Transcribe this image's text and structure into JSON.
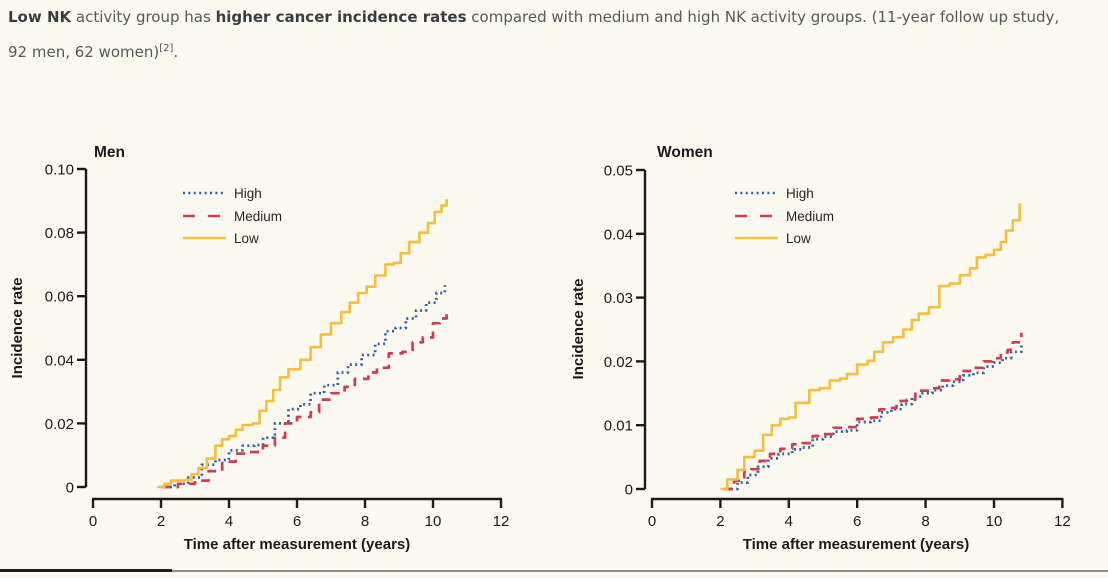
{
  "page": {
    "background": "#FCFAF0"
  },
  "header": {
    "text_color": "#53585A",
    "bold_color": "#383D3F",
    "segments": [
      {
        "t": "Low NK",
        "b": 1
      },
      {
        "t": " activity group has ",
        "b": 0
      },
      {
        "t": "higher cancer incidence rates",
        "b": 1
      },
      {
        "t": " compared with medium and high NK activity groups. (11-year follow up study,",
        "b": 0
      },
      {
        "br": 1
      },
      {
        "t": "92 men, 62 women)",
        "b": 0
      },
      {
        "t": "[2]",
        "b": 0,
        "sup": 1
      },
      {
        "t": ".",
        "b": 0
      }
    ]
  },
  "colors": {
    "axis": "#1A1A1A",
    "high": "#2F5FA7",
    "medium": "#D23B53",
    "low": "#F8BF3F",
    "legend_text": "#242424"
  },
  "footer": {
    "divider_left_color": "#1E1E1E",
    "divider_right_color": "#909090"
  },
  "chart_data": [
    {
      "type": "line",
      "subtype": "cumulative-incidence-step",
      "title": "Men",
      "xlabel": "Time after measurement (years)",
      "ylabel": "Incidence rate",
      "xlim": [
        0,
        12
      ],
      "ylim": [
        0,
        0.1
      ],
      "x_ticks": [
        0,
        2,
        4,
        6,
        8,
        10,
        12
      ],
      "y_ticks": [
        {
          "v": 0,
          "label": "0"
        },
        {
          "v": 0.02,
          "label": "0.02"
        },
        {
          "v": 0.04,
          "label": "0.04"
        },
        {
          "v": 0.06,
          "label": "0.06"
        },
        {
          "v": 0.08,
          "label": "0.08"
        },
        {
          "v": 0.1,
          "label": "0.10"
        }
      ],
      "grid": false,
      "legend_position": "top-left-inset",
      "series": [
        {
          "name": "High",
          "color_key": "high",
          "dash": "dotted",
          "points": [
            [
              2.1,
              0
            ],
            [
              2.4,
              0.001
            ],
            [
              2.8,
              0.003
            ],
            [
              3.2,
              0.007
            ],
            [
              3.6,
              0.0085
            ],
            [
              4.0,
              0.0115
            ],
            [
              4.4,
              0.013
            ],
            [
              4.75,
              0.0132
            ],
            [
              5.0,
              0.0155
            ],
            [
              5.35,
              0.02
            ],
            [
              5.75,
              0.0245
            ],
            [
              6.1,
              0.026
            ],
            [
              6.4,
              0.0295
            ],
            [
              6.8,
              0.032
            ],
            [
              7.2,
              0.036
            ],
            [
              7.5,
              0.0385
            ],
            [
              7.9,
              0.0415
            ],
            [
              8.3,
              0.045
            ],
            [
              8.6,
              0.049
            ],
            [
              8.9,
              0.05
            ],
            [
              9.2,
              0.053
            ],
            [
              9.5,
              0.0555
            ],
            [
              9.8,
              0.058
            ],
            [
              10.1,
              0.061
            ],
            [
              10.35,
              0.0635
            ]
          ]
        },
        {
          "name": "Medium",
          "color_key": "medium",
          "dash": "dashed",
          "points": [
            [
              2.0,
              0
            ],
            [
              2.5,
              0.001
            ],
            [
              3.0,
              0.002
            ],
            [
              3.4,
              0.005
            ],
            [
              3.8,
              0.008
            ],
            [
              4.2,
              0.0105
            ],
            [
              4.6,
              0.011
            ],
            [
              5.0,
              0.013
            ],
            [
              5.35,
              0.0155
            ],
            [
              5.65,
              0.02
            ],
            [
              6.0,
              0.022
            ],
            [
              6.4,
              0.0235
            ],
            [
              6.65,
              0.0275
            ],
            [
              7.0,
              0.0295
            ],
            [
              7.4,
              0.0315
            ],
            [
              7.7,
              0.034
            ],
            [
              8.1,
              0.036
            ],
            [
              8.35,
              0.0375
            ],
            [
              8.7,
              0.042
            ],
            [
              9.1,
              0.0425
            ],
            [
              9.4,
              0.0455
            ],
            [
              9.7,
              0.047
            ],
            [
              10.0,
              0.0515
            ],
            [
              10.2,
              0.053
            ],
            [
              10.4,
              0.055
            ]
          ]
        },
        {
          "name": "Low",
          "color_key": "low",
          "dash": "solid",
          "points": [
            [
              1.9,
              0
            ],
            [
              2.1,
              0.001
            ],
            [
              2.3,
              0.002
            ],
            [
              2.7,
              0.0022
            ],
            [
              2.9,
              0.004
            ],
            [
              3.1,
              0.006
            ],
            [
              3.35,
              0.009
            ],
            [
              3.6,
              0.013
            ],
            [
              3.8,
              0.015
            ],
            [
              4.0,
              0.016
            ],
            [
              4.2,
              0.018
            ],
            [
              4.4,
              0.0195
            ],
            [
              4.7,
              0.02
            ],
            [
              4.9,
              0.024
            ],
            [
              5.1,
              0.027
            ],
            [
              5.3,
              0.0305
            ],
            [
              5.5,
              0.0345
            ],
            [
              5.75,
              0.037
            ],
            [
              6.1,
              0.04
            ],
            [
              6.4,
              0.044
            ],
            [
              6.7,
              0.048
            ],
            [
              7.0,
              0.0515
            ],
            [
              7.3,
              0.055
            ],
            [
              7.55,
              0.058
            ],
            [
              7.8,
              0.061
            ],
            [
              8.05,
              0.063
            ],
            [
              8.3,
              0.0665
            ],
            [
              8.6,
              0.07
            ],
            [
              8.85,
              0.0705
            ],
            [
              9.05,
              0.0735
            ],
            [
              9.3,
              0.077
            ],
            [
              9.6,
              0.08
            ],
            [
              9.85,
              0.083
            ],
            [
              10.05,
              0.0865
            ],
            [
              10.25,
              0.0885
            ],
            [
              10.4,
              0.0905
            ]
          ]
        }
      ]
    },
    {
      "type": "line",
      "subtype": "cumulative-incidence-step",
      "title": "Women",
      "xlabel": "Time after measurement (years)",
      "ylabel": "Incidence rate",
      "xlim": [
        0,
        12
      ],
      "ylim": [
        0,
        0.05
      ],
      "x_ticks": [
        0,
        2,
        4,
        6,
        8,
        10,
        12
      ],
      "y_ticks": [
        {
          "v": 0,
          "label": "0"
        },
        {
          "v": 0.01,
          "label": "0.01"
        },
        {
          "v": 0.02,
          "label": "0.02"
        },
        {
          "v": 0.03,
          "label": "0.03"
        },
        {
          "v": 0.04,
          "label": "0.04"
        },
        {
          "v": 0.05,
          "label": "0.05"
        }
      ],
      "grid": false,
      "legend_position": "top-left-inset",
      "series": [
        {
          "name": "High",
          "color_key": "high",
          "dash": "dotted",
          "points": [
            [
              2.15,
              0
            ],
            [
              2.5,
              0.001
            ],
            [
              2.8,
              0.0022
            ],
            [
              3.1,
              0.0035
            ],
            [
              3.4,
              0.0048
            ],
            [
              3.7,
              0.0055
            ],
            [
              4.1,
              0.0062
            ],
            [
              4.4,
              0.0065
            ],
            [
              4.7,
              0.0078
            ],
            [
              5.0,
              0.0082
            ],
            [
              5.3,
              0.009
            ],
            [
              5.7,
              0.0092
            ],
            [
              6.0,
              0.0105
            ],
            [
              6.4,
              0.0107
            ],
            [
              6.7,
              0.012
            ],
            [
              7.0,
              0.0125
            ],
            [
              7.3,
              0.0133
            ],
            [
              7.6,
              0.0145
            ],
            [
              7.9,
              0.015
            ],
            [
              8.2,
              0.0155
            ],
            [
              8.5,
              0.0162
            ],
            [
              8.8,
              0.0168
            ],
            [
              9.1,
              0.0178
            ],
            [
              9.4,
              0.0182
            ],
            [
              9.7,
              0.0192
            ],
            [
              10.0,
              0.0198
            ],
            [
              10.25,
              0.0205
            ],
            [
              10.5,
              0.0215
            ],
            [
              10.8,
              0.0228
            ]
          ]
        },
        {
          "name": "Medium",
          "color_key": "medium",
          "dash": "dashed",
          "points": [
            [
              2.1,
              0
            ],
            [
              2.4,
              0.0013
            ],
            [
              2.7,
              0.0028
            ],
            [
              2.9,
              0.0031
            ],
            [
              3.15,
              0.0044
            ],
            [
              3.45,
              0.0055
            ],
            [
              3.75,
              0.0063
            ],
            [
              4.1,
              0.007
            ],
            [
              4.4,
              0.0072
            ],
            [
              4.7,
              0.0083
            ],
            [
              5.0,
              0.0086
            ],
            [
              5.3,
              0.0096
            ],
            [
              5.7,
              0.0097
            ],
            [
              6.0,
              0.011
            ],
            [
              6.4,
              0.0112
            ],
            [
              6.65,
              0.0125
            ],
            [
              6.9,
              0.0127
            ],
            [
              7.15,
              0.0138
            ],
            [
              7.45,
              0.014
            ],
            [
              7.7,
              0.0154
            ],
            [
              8.1,
              0.0158
            ],
            [
              8.4,
              0.017
            ],
            [
              8.7,
              0.0172
            ],
            [
              9.0,
              0.0185
            ],
            [
              9.4,
              0.019
            ],
            [
              9.7,
              0.02
            ],
            [
              9.95,
              0.0205
            ],
            [
              10.2,
              0.0214
            ],
            [
              10.4,
              0.0218
            ],
            [
              10.55,
              0.023
            ],
            [
              10.8,
              0.0245
            ]
          ]
        },
        {
          "name": "Low",
          "color_key": "low",
          "dash": "solid",
          "points": [
            [
              2.0,
              0
            ],
            [
              2.2,
              0.0015
            ],
            [
              2.5,
              0.003
            ],
            [
              2.7,
              0.005
            ],
            [
              3.0,
              0.006
            ],
            [
              3.25,
              0.0085
            ],
            [
              3.5,
              0.01
            ],
            [
              3.75,
              0.011
            ],
            [
              4.0,
              0.0112
            ],
            [
              4.2,
              0.0135
            ],
            [
              4.6,
              0.0155
            ],
            [
              4.9,
              0.0158
            ],
            [
              5.2,
              0.017
            ],
            [
              5.5,
              0.0173
            ],
            [
              5.7,
              0.018
            ],
            [
              6.0,
              0.0195
            ],
            [
              6.3,
              0.0201
            ],
            [
              6.5,
              0.0215
            ],
            [
              6.75,
              0.023
            ],
            [
              7.05,
              0.0238
            ],
            [
              7.35,
              0.025
            ],
            [
              7.6,
              0.0265
            ],
            [
              7.8,
              0.0275
            ],
            [
              8.1,
              0.0285
            ],
            [
              8.4,
              0.0318
            ],
            [
              8.7,
              0.0322
            ],
            [
              9.0,
              0.0335
            ],
            [
              9.3,
              0.0346
            ],
            [
              9.5,
              0.0363
            ],
            [
              9.75,
              0.0367
            ],
            [
              10.0,
              0.0375
            ],
            [
              10.2,
              0.0387
            ],
            [
              10.35,
              0.0405
            ],
            [
              10.55,
              0.0421
            ],
            [
              10.75,
              0.0448
            ]
          ]
        }
      ]
    }
  ]
}
